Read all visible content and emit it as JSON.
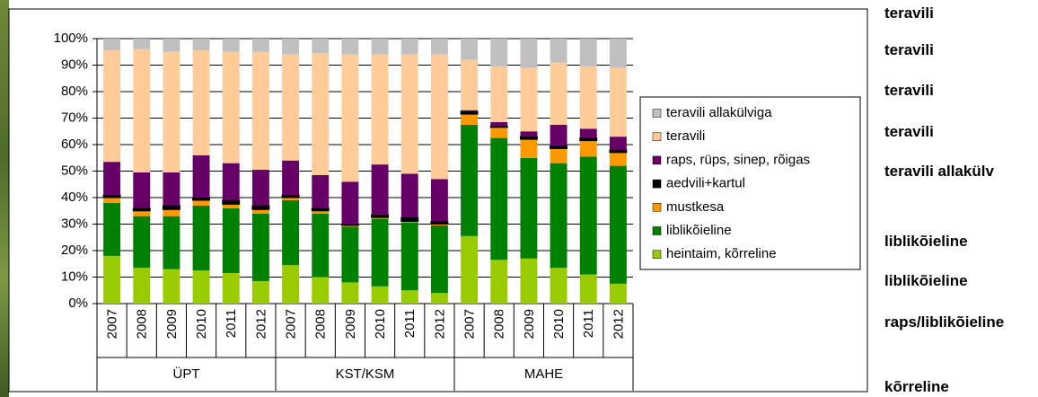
{
  "chart_data": {
    "type": "stacked_bar",
    "groups": [
      {
        "name": "ÜPT",
        "categories": [
          "2007",
          "2008",
          "2009",
          "2010",
          "2011",
          "2012"
        ]
      },
      {
        "name": "KST/KSM",
        "categories": [
          "2007",
          "2008",
          "2009",
          "2010",
          "2011",
          "2012"
        ]
      },
      {
        "name": "MAHE",
        "categories": [
          "2007",
          "2008",
          "2009",
          "2010",
          "2011",
          "2012"
        ]
      }
    ],
    "series": [
      {
        "name": "heintaim, kõrreline",
        "color": "#99cc00",
        "values": [
          18,
          13.5,
          13,
          12.5,
          11.5,
          8.5,
          14.5,
          10,
          8,
          6.5,
          5,
          4,
          25.5,
          16.5,
          17,
          13.5,
          11,
          7.5
        ]
      },
      {
        "name": "liblikõieline",
        "color": "#008000",
        "values": [
          20,
          19.5,
          20,
          24.5,
          24.5,
          25.5,
          24.5,
          24,
          21,
          25.5,
          25.5,
          25.5,
          42,
          46,
          38,
          39.5,
          44.5,
          44.5
        ]
      },
      {
        "name": "mustkesa",
        "color": "#ff9900",
        "values": [
          2,
          2,
          2.5,
          2,
          1.5,
          1.5,
          1,
          1,
          0.5,
          0.5,
          0.5,
          0.5,
          4,
          4,
          7,
          5.5,
          6,
          5
        ]
      },
      {
        "name": "aedvili+kartul",
        "color": "#000000",
        "values": [
          1,
          1,
          1.5,
          1,
          1.5,
          1.5,
          1,
          1,
          0.5,
          1,
          1.5,
          1,
          1,
          0.5,
          1,
          1,
          1,
          1
        ]
      },
      {
        "name": "raps, rüps, sinep, rõigas",
        "color": "#660066",
        "values": [
          12.5,
          13.5,
          12.5,
          16,
          14,
          13.5,
          13,
          12.5,
          16,
          19,
          16.5,
          16,
          0.5,
          1.5,
          2,
          8,
          3.5,
          5
        ]
      },
      {
        "name": "teravili",
        "color": "#ffcc99",
        "values": [
          42,
          46.5,
          45.5,
          39.5,
          42,
          44.5,
          40,
          46,
          48,
          41.5,
          45,
          47,
          19,
          21,
          24,
          23.5,
          23.5,
          26
        ]
      },
      {
        "name": "teravili allakülviga",
        "color": "#c0c0c0",
        "values": [
          4.5,
          4,
          5,
          4.5,
          5,
          5,
          6,
          5.5,
          6,
          6,
          6,
          6,
          8,
          10.5,
          11,
          9,
          10.5,
          11
        ]
      }
    ],
    "ylim": [
      0,
      100
    ],
    "yticks": [
      {
        "value": 0,
        "label": "0%"
      },
      {
        "value": 10,
        "label": "10%"
      },
      {
        "value": 20,
        "label": "20%"
      },
      {
        "value": 30,
        "label": "30%"
      },
      {
        "value": 40,
        "label": "40%"
      },
      {
        "value": 50,
        "label": "50%"
      },
      {
        "value": 60,
        "label": "60%"
      },
      {
        "value": 70,
        "label": "70%"
      },
      {
        "value": 80,
        "label": "80%"
      },
      {
        "value": 90,
        "label": "90%"
      },
      {
        "value": 100,
        "label": "100%"
      }
    ],
    "grid": true,
    "legend": "right"
  },
  "side_labels": [
    "teravili",
    "teravili",
    "teravili",
    "teravili",
    "teravili allakülv",
    "liblikõieline",
    "liblikõieline",
    "raps/liblikõieline",
    "kõrreline"
  ]
}
